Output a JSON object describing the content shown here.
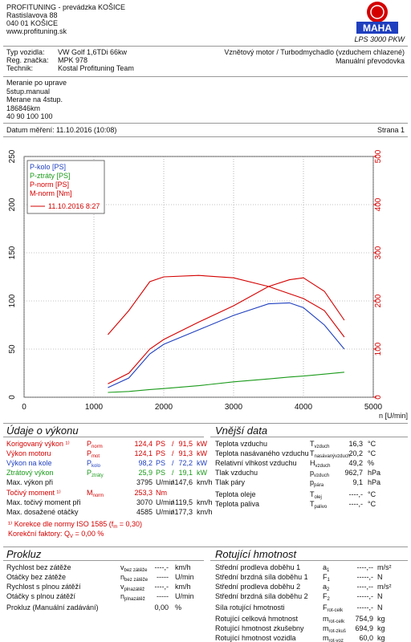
{
  "header": {
    "lines": [
      "PROFITUNING - prevádzka KOŠICE",
      "Rastislavova 88",
      "040 01 KOŠICE",
      "www.profituning.sk"
    ]
  },
  "logo": {
    "brand": "MAHA",
    "model": "LPS 3000 PKW"
  },
  "vehicle": {
    "rows": [
      [
        "Typ vozidla:",
        "VW Golf 1,6TDi 66kw"
      ],
      [
        "Reg. značka:",
        "MPK 978"
      ],
      [
        "Technik:",
        "Kostal Profituning Team"
      ]
    ],
    "engine": "Vznětový motor / Turbodmychadlo (vzduchem chlazené)",
    "gearbox": "Manuální převodovka"
  },
  "notes": [
    "Meranie po uprave",
    "5stup.manual",
    "Merane na 4stup.",
    "186846km",
    "40 90 100 100"
  ],
  "date": {
    "label": "Datum měření: 11.10.2016 (10:08)",
    "page": "Strana 1"
  },
  "chart_data": {
    "type": "line",
    "x": [
      1200,
      1500,
      1800,
      2000,
      2500,
      3000,
      3500,
      3800,
      4000,
      4300,
      4585
    ],
    "series": [
      {
        "name": "P-kolo [PS]",
        "color": "#1f3fbf",
        "values": [
          10,
          20,
          45,
          55,
          70,
          85,
          97,
          98,
          93,
          75,
          50
        ]
      },
      {
        "name": "P-ztráty [PS]",
        "color": "#1a9a1a",
        "values": [
          5,
          6,
          8,
          9,
          12,
          16,
          19,
          21,
          22,
          24,
          26
        ]
      },
      {
        "name": "P-norm [PS]",
        "color": "#d40000",
        "values": [
          14,
          25,
          50,
          60,
          78,
          95,
          115,
          122,
          124,
          110,
          80
        ]
      },
      {
        "name": "M-norm [Nm]",
        "color": "#d40000",
        "axis": "y2",
        "values": [
          130,
          180,
          240,
          250,
          253,
          248,
          230,
          215,
          205,
          180,
          125
        ]
      }
    ],
    "run": "11.10.2016 8:27",
    "xlabel": "n [U/min]",
    "xlim": [
      0,
      5000
    ],
    "xticks": [
      0,
      1000,
      2000,
      3000,
      4000,
      5000
    ],
    "ylim": [
      0,
      250
    ],
    "yticks": [
      0,
      50,
      100,
      150,
      200,
      250
    ],
    "y2lim": [
      0,
      500
    ],
    "y2ticks": [
      0,
      100,
      200,
      300,
      400,
      500
    ],
    "grid": true,
    "y2color": "#d40000"
  },
  "performance": {
    "title": "Údaje o výkonu",
    "rows": [
      {
        "label": "Korigovaný výkon ¹⁾",
        "sym": "P",
        "sub": "norm",
        "v1": "124,4",
        "u1": "PS",
        "sep": "/",
        "v2": "91,5",
        "u2": "kW",
        "color": "#d40000"
      },
      {
        "label": "Výkon motoru",
        "sym": "P",
        "sub": "mot",
        "v1": "124,1",
        "u1": "PS",
        "sep": "/",
        "v2": "91,3",
        "u2": "kW",
        "color": "#d40000"
      },
      {
        "label": "Výkon na kole",
        "sym": "P",
        "sub": "kolo",
        "v1": "98,2",
        "u1": "PS",
        "sep": "/",
        "v2": "72,2",
        "u2": "kW",
        "color": "#1f3fbf"
      },
      {
        "label": "Ztrátový výkon",
        "sym": "P",
        "sub": "ztráty",
        "v1": "25,9",
        "u1": "PS",
        "sep": "/",
        "v2": "19,1",
        "u2": "kW",
        "color": "#1a9a1a"
      },
      {
        "label": "Max. výkon při",
        "v1": "3795",
        "u1": "U/min",
        "sep": "/",
        "v2": "147,6",
        "u2": "km/h"
      },
      {
        "label": "Točivý moment ¹⁾",
        "sym": "M",
        "sub": "norm",
        "v1": "253,3",
        "u1": "Nm",
        "color": "#d40000"
      },
      {
        "label": "Max. točivý moment při",
        "v1": "3070",
        "u1": "U/min",
        "sep": "/",
        "v2": "119,5",
        "u2": "km/h"
      },
      {
        "label": "Max. dosažené otáčky",
        "v1": "4585",
        "u1": "U/min",
        "sep": "/",
        "v2": "177,3",
        "u2": "km/h"
      }
    ],
    "footnotes": [
      [
        "¹⁾ Korekce dle normy ISO 1585 (f",
        "m",
        " = 0,30)"
      ],
      [
        "Korekční faktory: Q",
        "V",
        " = 0,00 %"
      ]
    ]
  },
  "external": {
    "title": "Vnější data",
    "rows": [
      {
        "label": "Teplota vzduchu",
        "sym": "T",
        "sub": "vzduch",
        "v1": "16,3",
        "u1": "°C"
      },
      {
        "label": "Teplota nasávaného vzduchu",
        "sym": "T",
        "sub": "nasávanývzduch",
        "v1": "20,2",
        "u1": "°C"
      },
      {
        "label": "Relativní vlhkost vzduchu",
        "sym": "H",
        "sub": "vzduch",
        "v1": "49,2",
        "u1": "%"
      },
      {
        "label": "Tlak vzduchu",
        "sym": "p",
        "sub": "vzduch",
        "v1": "962,7",
        "u1": "hPa"
      },
      {
        "label": "Tlak páry",
        "sym": "p",
        "sub": "pára",
        "v1": "9,1",
        "u1": "hPa"
      },
      {
        "label": "Teplota oleje",
        "sym": "T",
        "sub": "olej",
        "v1": "----,-",
        "u1": "°C"
      },
      {
        "label": "Teplota paliva",
        "sym": "T",
        "sub": "palivo",
        "v1": "----,-",
        "u1": "°C"
      }
    ]
  },
  "slip": {
    "title": "Prokluz",
    "rows": [
      {
        "label": "Rychlost bez zátěže",
        "sym": "v",
        "sub": "bez zátěže",
        "v1": "----,-",
        "u1": "km/h"
      },
      {
        "label": "Otáčky bez zátěže",
        "sym": "n",
        "sub": "bez zátěže",
        "v1": "-----",
        "u1": "U/min"
      },
      {
        "label": "Rychlost s plnou zátěží",
        "sym": "v",
        "sub": "plnazátěž",
        "v1": "----,-",
        "u1": "km/h"
      },
      {
        "label": "Otáčky s plnou zátěží",
        "sym": "n",
        "sub": "plnazátěž",
        "v1": "-----",
        "u1": "U/min"
      },
      {
        "label": "Prokluz (Manuální zadávání)",
        "v1": "0,00",
        "u1": "%"
      }
    ]
  },
  "rotating": {
    "title": "Rotující hmotnost",
    "rows": [
      {
        "label": "Střední prodleva doběhu 1",
        "sym": "a",
        "sub": "1",
        "v1": "----,--",
        "u1": "m/s²"
      },
      {
        "label": "Střední brzdná síla doběhu 1",
        "sym": "F",
        "sub": "1",
        "v1": "-----,-",
        "u1": "N"
      },
      {
        "label": "Střední prodleva doběhu 2",
        "sym": "a",
        "sub": "2",
        "v1": "----,--",
        "u1": "m/s²"
      },
      {
        "label": "Střední brzdná síla doběhu 2",
        "sym": "F",
        "sub": "2",
        "v1": "-----,-",
        "u1": "N"
      },
      {
        "label": "Síla rotující hmotnosti",
        "sym": "F",
        "sub": "rot-celk",
        "v1": "-----,-",
        "u1": "N"
      },
      {
        "label": "Rotující celková hmotnost",
        "sym": "m",
        "sub": "rot-celk",
        "v1": "754,9",
        "u1": "kg"
      },
      {
        "label": "Rotující hmotnost zkušebny",
        "sym": "m",
        "sub": "rot-zkuš",
        "v1": "694,9",
        "u1": "kg"
      },
      {
        "label": "Rotující hmotnost vozidla",
        "sym": "m",
        "sub": "rot-voz",
        "v1": "60,0",
        "u1": "kg"
      }
    ]
  }
}
